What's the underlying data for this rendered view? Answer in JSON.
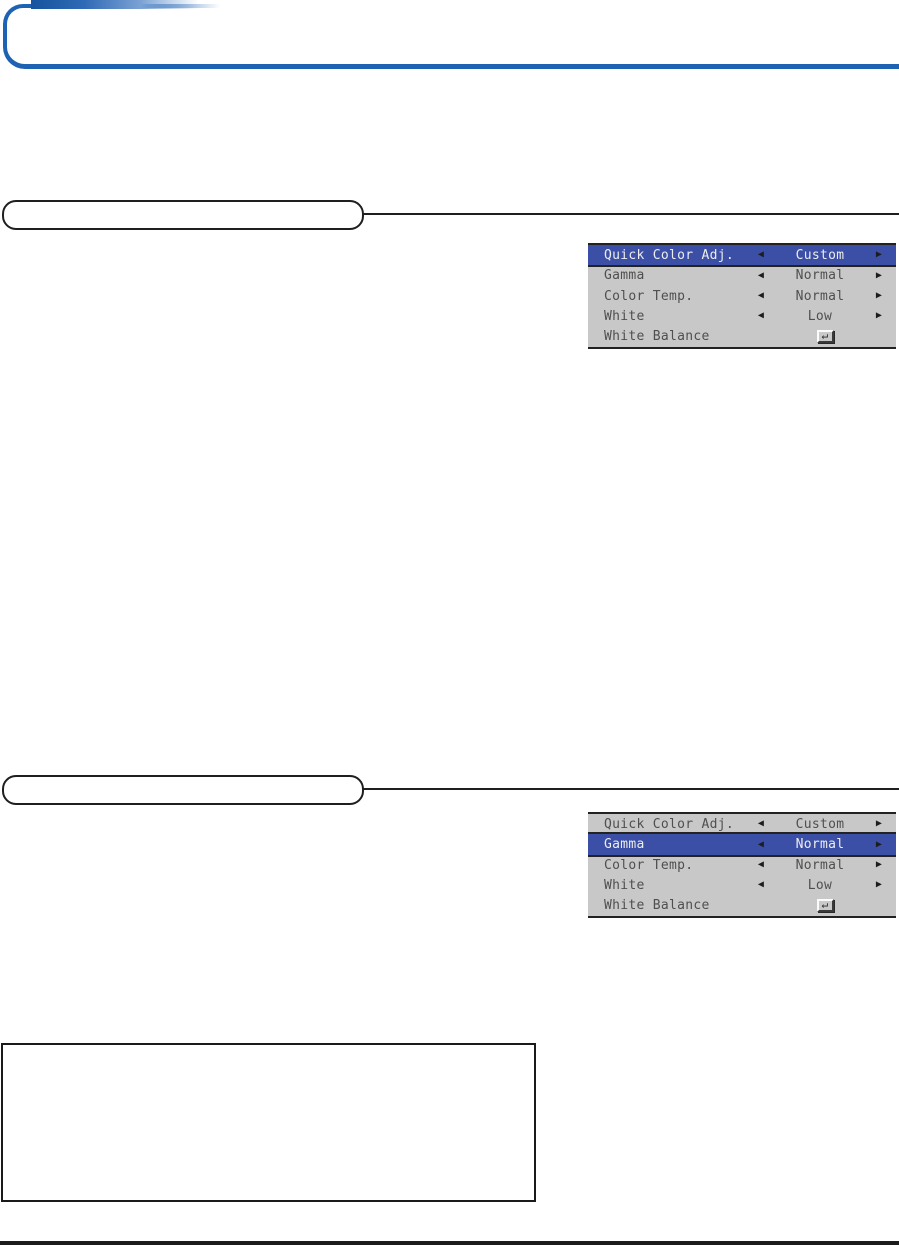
{
  "colors": {
    "header_accent_blue": "#1e62b4",
    "osd_highlight_blue": "#3b4fa6",
    "osd_background_gray": "#c8c8c8",
    "rule_black": "#1c1c1c"
  },
  "glyphs": {
    "left_arrow": "◀",
    "right_arrow": "▶",
    "enter": "↵"
  },
  "figure1": {
    "highlighted_row": "Quick Color Adj.",
    "rows": [
      {
        "label": "Quick Color Adj.",
        "value": "Custom"
      },
      {
        "label": "Gamma",
        "value": "Normal"
      },
      {
        "label": "Color Temp.",
        "value": "Normal"
      },
      {
        "label": "White",
        "value": "Low"
      },
      {
        "label": "White Balance",
        "value": ""
      }
    ]
  },
  "figure2": {
    "highlighted_row": "Gamma",
    "rows": [
      {
        "label": "Quick Color Adj.",
        "value": "Custom"
      },
      {
        "label": "Gamma",
        "value": "Normal"
      },
      {
        "label": "Color Temp.",
        "value": "Normal"
      },
      {
        "label": "White",
        "value": "Low"
      },
      {
        "label": "White Balance",
        "value": ""
      }
    ]
  }
}
